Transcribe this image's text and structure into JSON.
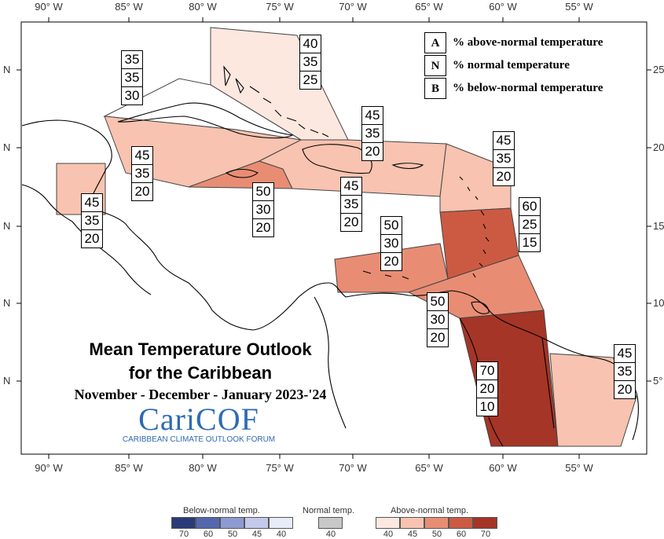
{
  "map": {
    "lon_labels": [
      "90° W",
      "85° W",
      "80° W",
      "75° W",
      "70° W",
      "65° W",
      "60° W",
      "55° W"
    ],
    "lat_labels_left": [
      "N",
      "N",
      "N",
      "N",
      "N"
    ],
    "lat_labels_right": [
      "25",
      "20",
      "15",
      "10",
      "5°"
    ],
    "colors": {
      "above_40": "#fde8e0",
      "above_45": "#f8c3b0",
      "above_50": "#e88d74",
      "above_60": "#cc5a43",
      "above_70": "#a53527",
      "land_outline": "#000000"
    }
  },
  "key": [
    {
      "letter": "A",
      "text": "% above-normal temperature"
    },
    {
      "letter": "N",
      "text": "% normal temperature"
    },
    {
      "letter": "B",
      "text": "% below-normal temperature"
    }
  ],
  "boxes": [
    {
      "id": "bahamas",
      "values": [
        "40",
        "35",
        "25"
      ]
    },
    {
      "id": "north-cuba",
      "values": [
        "35",
        "35",
        "30"
      ]
    },
    {
      "id": "cuba-cayman",
      "values": [
        "45",
        "35",
        "20"
      ]
    },
    {
      "id": "belize",
      "values": [
        "45",
        "35",
        "20"
      ]
    },
    {
      "id": "jamaica",
      "values": [
        "50",
        "30",
        "20"
      ]
    },
    {
      "id": "hispaniola-north",
      "values": [
        "45",
        "35",
        "20"
      ]
    },
    {
      "id": "hispaniola-south",
      "values": [
        "45",
        "35",
        "20"
      ]
    },
    {
      "id": "leeward",
      "values": [
        "45",
        "35",
        "20"
      ]
    },
    {
      "id": "windward",
      "values": [
        "60",
        "25",
        "15"
      ]
    },
    {
      "id": "abc-islands",
      "values": [
        "50",
        "30",
        "20"
      ]
    },
    {
      "id": "trinidad",
      "values": [
        "50",
        "30",
        "20"
      ]
    },
    {
      "id": "guyana",
      "values": [
        "70",
        "20",
        "10"
      ]
    },
    {
      "id": "french-guiana",
      "values": [
        "45",
        "35",
        "20"
      ]
    }
  ],
  "title": {
    "line1": "Mean Temperature Outlook",
    "line2": "for the Caribbean",
    "period": "November - December - January 2023-'24"
  },
  "logo": {
    "word": "CariCOF",
    "subtitle": "CARIBBEAN CLIMATE OUTLOOK FORUM"
  },
  "legend": {
    "below_title": "Below-normal temp.",
    "normal_title": "Normal temp.",
    "above_title": "Above-normal temp.",
    "below_swatches": [
      {
        "label": "70",
        "color": "#2b3a78"
      },
      {
        "label": "60",
        "color": "#5567ad"
      },
      {
        "label": "50",
        "color": "#8e9bd0"
      },
      {
        "label": "45",
        "color": "#c2c9ea"
      },
      {
        "label": "40",
        "color": "#e8ebf8"
      }
    ],
    "normal_swatch": {
      "label": "40",
      "color": "#c8c8c8"
    },
    "above_swatches": [
      {
        "label": "40",
        "color": "#fde8e0"
      },
      {
        "label": "45",
        "color": "#f8c3b0"
      },
      {
        "label": "50",
        "color": "#e88d74"
      },
      {
        "label": "60",
        "color": "#cc5a43"
      },
      {
        "label": "70",
        "color": "#a53527"
      }
    ]
  }
}
